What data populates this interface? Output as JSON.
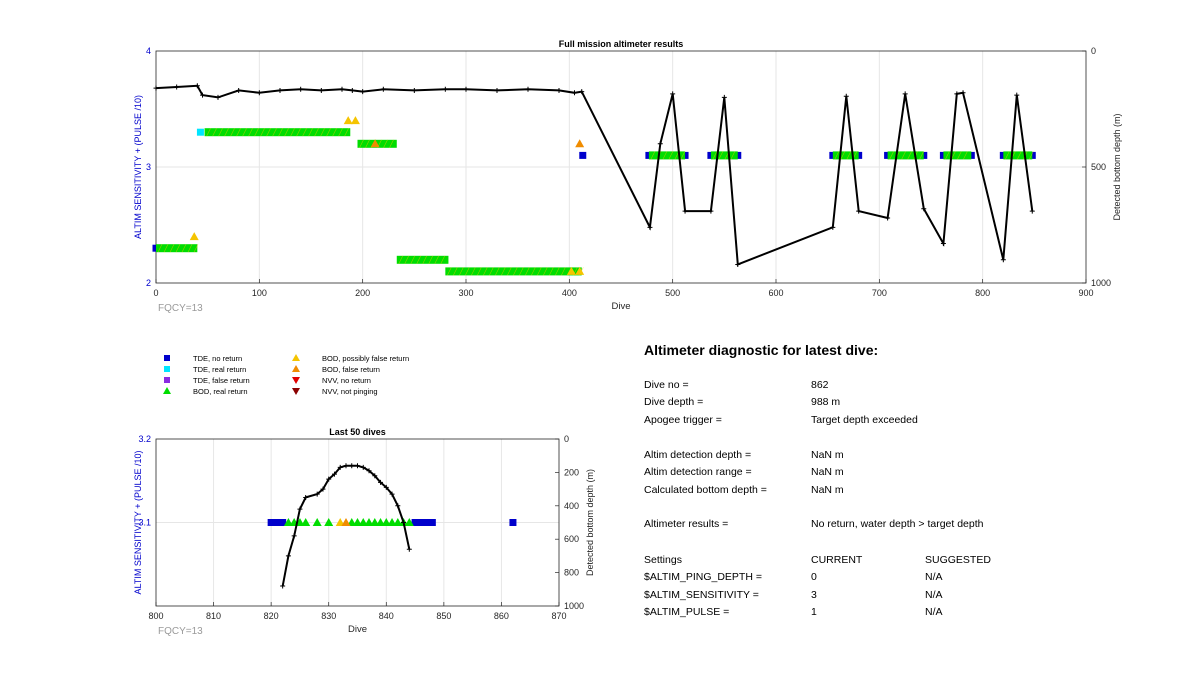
{
  "top_chart": {
    "title": "Full mission altimeter results",
    "xlabel": "Dive",
    "ylabel_left": "ALTIM SENSITIVITY + (PULSE /10)",
    "ylabel_right": "Detected bottom depth (m)",
    "xticks": [
      "0",
      "100",
      "200",
      "300",
      "400",
      "500",
      "600",
      "700",
      "800",
      "900"
    ],
    "yticks_left": [
      "2",
      "3",
      "4"
    ],
    "yticks_right": [
      "0",
      "500",
      "1000"
    ],
    "fqcy_label": "FQCY=13"
  },
  "bottom_chart": {
    "title": "Last 50 dives",
    "xlabel": "Dive",
    "ylabel_left": "ALTIM SENSITIVITY + (PULSE /10)",
    "ylabel_right": "Detected bottom depth (m)",
    "xticks": [
      "800",
      "810",
      "820",
      "830",
      "840",
      "850",
      "860",
      "870"
    ],
    "yticks_left": [
      "3.1",
      "3.2"
    ],
    "yticks_right": [
      "0",
      "200",
      "400",
      "600",
      "800",
      "1000"
    ],
    "fqcy_label": "FQCY=13"
  },
  "legend": [
    {
      "label": "TDE, no return",
      "color": "#0000cc",
      "shape": "square"
    },
    {
      "label": "TDE, real return",
      "color": "#00e5ff",
      "shape": "square"
    },
    {
      "label": "TDE, false return",
      "color": "#8a2be2",
      "shape": "square"
    },
    {
      "label": "BOD, real return",
      "color": "#00dd00",
      "shape": "triangle-up"
    },
    {
      "label": "BOD, possibly false return",
      "color": "#f5c400",
      "shape": "triangle-up"
    },
    {
      "label": "BOD, false return",
      "color": "#f08c00",
      "shape": "triangle-up"
    },
    {
      "label": "NVV, no return",
      "color": "#e00000",
      "shape": "triangle-down"
    },
    {
      "label": "NVV, not pinging",
      "color": "#8b0000",
      "shape": "triangle-down"
    }
  ],
  "diagnostic": {
    "title": "Altimeter diagnostic for latest dive:",
    "rows": [
      {
        "label": "Dive no =",
        "value": "862"
      },
      {
        "label": "Dive depth =",
        "value": "988 m"
      },
      {
        "label": "Apogee trigger =",
        "value": "Target depth exceeded"
      },
      {
        "label": "Altim detection depth =",
        "value": "NaN m"
      },
      {
        "label": "Altim detection range =",
        "value": "NaN m"
      },
      {
        "label": "Calculated bottom depth =",
        "value": "NaN m"
      },
      {
        "label": "Altimeter results =",
        "value": "No return, water depth > target depth"
      }
    ],
    "settings_header": {
      "label": "Settings",
      "current": "CURRENT",
      "suggested": "SUGGESTED"
    },
    "settings": [
      {
        "label": "$ALTIM_PING_DEPTH =",
        "current": "0",
        "suggested": "N/A"
      },
      {
        "label": "$ALTIM_SENSITIVITY =",
        "current": "3",
        "suggested": "N/A"
      },
      {
        "label": "$ALTIM_PULSE =",
        "current": "1",
        "suggested": "N/A"
      }
    ]
  },
  "chart_data": [
    {
      "type": "scatter",
      "title": "Full mission altimeter results",
      "xlabel": "Dive",
      "ylabel": "ALTIM SENSITIVITY + (PULSE /10)",
      "ylabel_right": "Detected bottom depth (m)",
      "xlim": [
        0,
        900
      ],
      "ylim": [
        2,
        4
      ],
      "ylim_right": [
        1000,
        0
      ],
      "grid": true,
      "series": [
        {
          "name": "TDE, no return",
          "color": "#0000cc",
          "marker": "square",
          "points": [
            [
              0,
              2.3
            ],
            [
              413,
              3.1
            ],
            [
              477,
              3.1
            ],
            [
              512,
              3.1
            ],
            [
              537,
              3.1
            ],
            [
              563,
              3.1
            ],
            [
              655,
              3.1
            ],
            [
              680,
              3.1
            ],
            [
              708,
              3.1
            ],
            [
              743,
              3.1
            ],
            [
              762,
              3.1
            ],
            [
              789,
              3.1
            ],
            [
              820,
              3.1
            ],
            [
              848,
              3.1
            ]
          ]
        },
        {
          "name": "TDE, real return",
          "color": "#00e5ff",
          "marker": "square",
          "points": [
            [
              43,
              3.3
            ]
          ]
        },
        {
          "name": "BOD, real return",
          "color": "#00dd00",
          "marker": "triangle-up",
          "segments": [
            [
              0,
              40,
              2.3
            ],
            [
              47,
              188,
              3.3
            ],
            [
              195,
              233,
              3.2
            ],
            [
              233,
              283,
              2.2
            ],
            [
              280,
              412,
              2.1
            ],
            [
              477,
              512,
              3.1
            ],
            [
              537,
              563,
              3.1
            ],
            [
              655,
              680,
              3.1
            ],
            [
              708,
              743,
              3.1
            ],
            [
              762,
              789,
              3.1
            ],
            [
              820,
              848,
              3.1
            ]
          ]
        },
        {
          "name": "BOD, possibly false return",
          "color": "#f5c400",
          "marker": "triangle-up",
          "points": [
            [
              37,
              2.4
            ],
            [
              186,
              3.4
            ],
            [
              193,
              3.4
            ],
            [
              402,
              2.1
            ],
            [
              410,
              2.1
            ]
          ]
        },
        {
          "name": "BOD, false return",
          "color": "#f08c00",
          "marker": "triangle-up",
          "points": [
            [
              410,
              3.2
            ],
            [
              212,
              3.2
            ]
          ]
        },
        {
          "name": "Detected bottom depth",
          "color": "#000000",
          "axis": "right",
          "points": [
            [
              0,
              160
            ],
            [
              20,
              155
            ],
            [
              40,
              150
            ],
            [
              45,
              190
            ],
            [
              60,
              200
            ],
            [
              80,
              170
            ],
            [
              100,
              180
            ],
            [
              120,
              170
            ],
            [
              140,
              165
            ],
            [
              160,
              170
            ],
            [
              180,
              165
            ],
            [
              190,
              170
            ],
            [
              200,
              175
            ],
            [
              220,
              165
            ],
            [
              250,
              170
            ],
            [
              280,
              165
            ],
            [
              300,
              165
            ],
            [
              330,
              170
            ],
            [
              360,
              165
            ],
            [
              390,
              170
            ],
            [
              405,
              180
            ],
            [
              412,
              175
            ],
            [
              478,
              760
            ],
            [
              488,
              400
            ],
            [
              500,
              185
            ],
            [
              512,
              690
            ],
            [
              537,
              690
            ],
            [
              550,
              200
            ],
            [
              563,
              920
            ],
            [
              655,
              760
            ],
            [
              668,
              195
            ],
            [
              680,
              690
            ],
            [
              708,
              720
            ],
            [
              725,
              185
            ],
            [
              743,
              680
            ],
            [
              762,
              830
            ],
            [
              775,
              185
            ],
            [
              781,
              180
            ],
            [
              820,
              900
            ],
            [
              833,
              190
            ],
            [
              848,
              690
            ]
          ]
        }
      ]
    },
    {
      "type": "scatter",
      "title": "Last 50 dives",
      "xlabel": "Dive",
      "ylabel": "ALTIM SENSITIVITY + (PULSE /10)",
      "ylabel_right": "Detected bottom depth (m)",
      "xlim": [
        800,
        870
      ],
      "ylim": [
        3.0,
        3.2
      ],
      "ylim_right": [
        1000,
        0
      ],
      "grid": true,
      "series": [
        {
          "name": "TDE, no return",
          "color": "#0000cc",
          "marker": "square",
          "points": [
            [
              820,
              3.1
            ],
            [
              821,
              3.1
            ],
            [
              822,
              3.1
            ],
            [
              845,
              3.1
            ],
            [
              846,
              3.1
            ],
            [
              847,
              3.1
            ],
            [
              848,
              3.1
            ],
            [
              862,
              3.1
            ]
          ]
        },
        {
          "name": "BOD, real return",
          "color": "#00dd00",
          "marker": "triangle-up",
          "points": [
            [
              823,
              3.1
            ],
            [
              824,
              3.1
            ],
            [
              825,
              3.1
            ],
            [
              826,
              3.1
            ],
            [
              828,
              3.1
            ],
            [
              830,
              3.1
            ],
            [
              834,
              3.1
            ],
            [
              835,
              3.1
            ],
            [
              836,
              3.1
            ],
            [
              837,
              3.1
            ],
            [
              838,
              3.1
            ],
            [
              839,
              3.1
            ],
            [
              840,
              3.1
            ],
            [
              841,
              3.1
            ],
            [
              842,
              3.1
            ],
            [
              843,
              3.1
            ],
            [
              844,
              3.1
            ]
          ]
        },
        {
          "name": "BOD, possibly false return",
          "color": "#f5c400",
          "marker": "triangle-up",
          "points": [
            [
              832,
              3.1
            ]
          ]
        },
        {
          "name": "BOD, false return",
          "color": "#f08c00",
          "marker": "triangle-up",
          "points": [
            [
              833,
              3.1
            ]
          ]
        },
        {
          "name": "Detected bottom depth",
          "color": "#000000",
          "axis": "right",
          "points": [
            [
              822,
              880
            ],
            [
              823,
              700
            ],
            [
              824,
              580
            ],
            [
              825,
              420
            ],
            [
              826,
              350
            ],
            [
              828,
              330
            ],
            [
              829,
              300
            ],
            [
              830,
              240
            ],
            [
              831,
              210
            ],
            [
              832,
              170
            ],
            [
              833,
              160
            ],
            [
              834,
              160
            ],
            [
              835,
              160
            ],
            [
              836,
              170
            ],
            [
              837,
              190
            ],
            [
              838,
              220
            ],
            [
              839,
              260
            ],
            [
              840,
              290
            ],
            [
              841,
              330
            ],
            [
              842,
              400
            ],
            [
              843,
              500
            ],
            [
              844,
              660
            ]
          ]
        }
      ]
    }
  ]
}
